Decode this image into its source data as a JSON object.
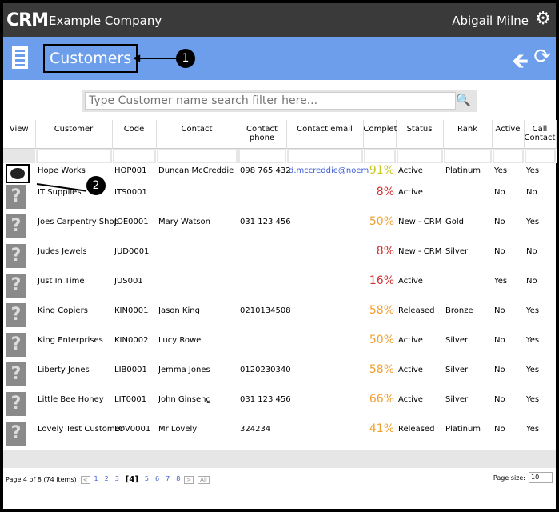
{
  "app": {
    "logo": "CRM",
    "company": "Example Company",
    "user": "Abigail Milne"
  },
  "page": {
    "title": "Customers",
    "callouts": [
      "1",
      "2"
    ]
  },
  "search": {
    "placeholder": "Type Customer name search filter here..."
  },
  "columns": [
    "View",
    "Customer",
    "Code",
    "Contact",
    "Contact phone",
    "Contact email",
    "Complet",
    "Status",
    "Rank",
    "Active",
    "Call Contact"
  ],
  "rows": [
    {
      "customer": "Hope Works",
      "code": "HOP001",
      "contact": "Duncan McCreddie",
      "phone": "098 765 432",
      "email": "d.mccreddie@noem",
      "complete": "91%",
      "status": "Active",
      "rank": "Platinum",
      "active": "Yes",
      "call": "Yes"
    },
    {
      "customer": "IT Supplies",
      "code": "ITS0001",
      "contact": "",
      "phone": "",
      "email": "",
      "complete": "8%",
      "status": "Active",
      "rank": "",
      "active": "No",
      "call": "No"
    },
    {
      "customer": "Joes Carpentry Shop",
      "code": "JOE0001",
      "contact": "Mary Watson",
      "phone": "031 123 456",
      "email": "",
      "complete": "50%",
      "status": "New - CRM",
      "rank": "Gold",
      "active": "No",
      "call": "Yes"
    },
    {
      "customer": "Judes Jewels",
      "code": "JUD0001",
      "contact": "",
      "phone": "",
      "email": "",
      "complete": "8%",
      "status": "New - CRM",
      "rank": "Silver",
      "active": "No",
      "call": "No"
    },
    {
      "customer": "Just In Time",
      "code": "JUS001",
      "contact": "",
      "phone": "",
      "email": "",
      "complete": "16%",
      "status": "Active",
      "rank": "",
      "active": "Yes",
      "call": "No"
    },
    {
      "customer": "King Copiers",
      "code": "KIN0001",
      "contact": "Jason King",
      "phone": "0210134508",
      "email": "",
      "complete": "58%",
      "status": "Released",
      "rank": "Bronze",
      "active": "No",
      "call": "Yes"
    },
    {
      "customer": "King Enterprises",
      "code": "KIN0002",
      "contact": "Lucy Rowe",
      "phone": "",
      "email": "",
      "complete": "50%",
      "status": "Active",
      "rank": "Silver",
      "active": "No",
      "call": "Yes"
    },
    {
      "customer": "Liberty Jones",
      "code": "LIB0001",
      "contact": "Jemma Jones",
      "phone": "0120230340",
      "email": "",
      "complete": "58%",
      "status": "Active",
      "rank": "Silver",
      "active": "No",
      "call": "Yes"
    },
    {
      "customer": "Little Bee Honey",
      "code": "LIT0001",
      "contact": "John Ginseng",
      "phone": "031 123 456",
      "email": "",
      "complete": "66%",
      "status": "Active",
      "rank": "Silver",
      "active": "No",
      "call": "Yes"
    },
    {
      "customer": "Lovely Test Customer",
      "code": "LOV0001",
      "contact": "Mr Lovely",
      "phone": "324234",
      "email": "",
      "complete": "41%",
      "status": "Released",
      "rank": "Platinum",
      "active": "No",
      "call": "Yes"
    }
  ],
  "complete_colors": {
    "high": "#c8c820",
    "mid": "#f0a030",
    "low": "#d03030"
  },
  "pager": {
    "summary": "Page 4 of 8 (74 items)",
    "prev": "<",
    "pages": [
      "1",
      "2",
      "3",
      "[4]",
      "5",
      "6",
      "7",
      "8"
    ],
    "next": ">",
    "all": "All",
    "page_size_label": "Page size:",
    "page_size": "10"
  }
}
